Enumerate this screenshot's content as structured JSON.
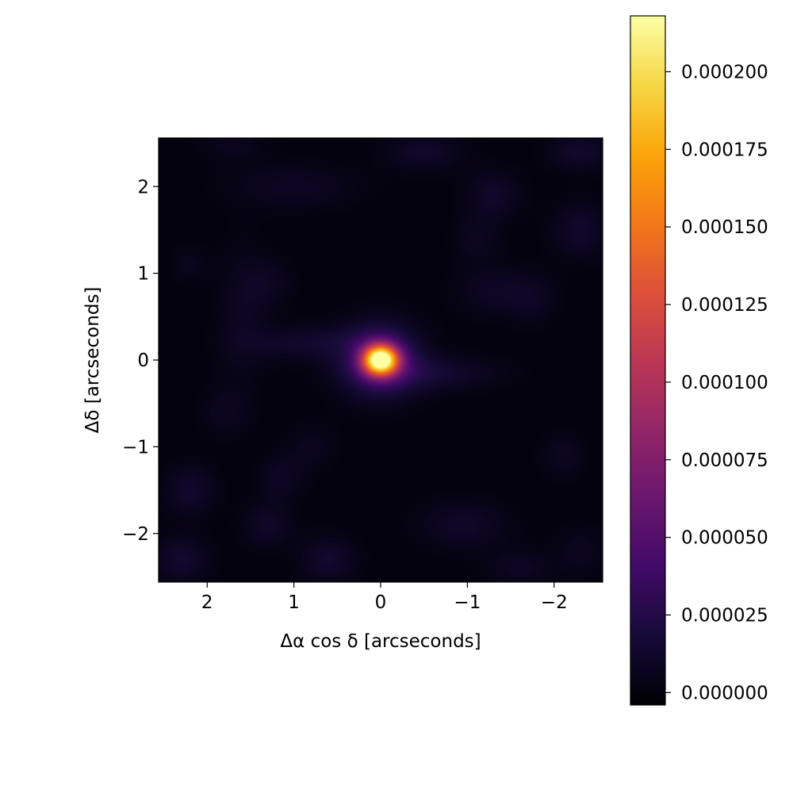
{
  "chart_data": {
    "type": "heatmap",
    "title": "",
    "xlabel": "Δα cos δ [arcseconds]",
    "ylabel": "Δδ [arcseconds]",
    "xlim": [
      2.56,
      -2.56
    ],
    "ylim": [
      -2.56,
      2.56
    ],
    "x_ticks": [
      2,
      1,
      0,
      -1,
      -2
    ],
    "x_tick_labels": [
      "2",
      "1",
      "0",
      "−1",
      "−2"
    ],
    "y_ticks": [
      2,
      1,
      0,
      -1,
      -2
    ],
    "y_tick_labels": [
      "2",
      "1",
      "0",
      "−1",
      "−2"
    ],
    "colormap": "inferno",
    "colorbar": {
      "range": [
        -4e-06,
        0.000218
      ],
      "ticks": [
        0,
        2.5e-05,
        5e-05,
        7.5e-05,
        0.0001,
        0.000125,
        0.00015,
        0.000175,
        0.0002
      ],
      "tick_labels": [
        "0.000000",
        "0.000025",
        "0.000050",
        "0.000075",
        "0.000100",
        "0.000125",
        "0.000150",
        "0.000175",
        "0.000200"
      ]
    },
    "components": [
      {
        "x": 0.0,
        "y": 0.0,
        "peak": 0.000218,
        "sigma_x": 0.14,
        "sigma_y": 0.12
      },
      {
        "x": 0.0,
        "y": 0.0,
        "peak": 4.5e-05,
        "sigma_x": 0.3,
        "sigma_y": 0.28
      },
      {
        "x": -0.5,
        "y": -0.15,
        "peak": 1.5e-05,
        "sigma_x": 0.55,
        "sigma_y": 0.14
      },
      {
        "x": 0.8,
        "y": 0.2,
        "peak": 1.3e-05,
        "sigma_x": 0.5,
        "sigma_y": 0.14
      },
      {
        "x": 2.2,
        "y": -1.5,
        "peak": 1.3e-05,
        "sigma_x": 0.2,
        "sigma_y": 0.2
      },
      {
        "x": 2.3,
        "y": -2.3,
        "peak": 1.4e-05,
        "sigma_x": 0.22,
        "sigma_y": 0.18
      },
      {
        "x": 0.6,
        "y": -2.3,
        "peak": 1.4e-05,
        "sigma_x": 0.22,
        "sigma_y": 0.18
      },
      {
        "x": 1.3,
        "y": -1.9,
        "peak": 1.1e-05,
        "sigma_x": 0.2,
        "sigma_y": 0.18
      },
      {
        "x": 1.15,
        "y": -1.35,
        "peak": 9e-06,
        "sigma_x": 0.18,
        "sigma_y": 0.18
      },
      {
        "x": -0.95,
        "y": -1.9,
        "peak": 1.1e-05,
        "sigma_x": 0.35,
        "sigma_y": 0.2
      },
      {
        "x": -1.6,
        "y": -2.4,
        "peak": 9e-06,
        "sigma_x": 0.25,
        "sigma_y": 0.15
      },
      {
        "x": -2.3,
        "y": -2.2,
        "peak": 7e-06,
        "sigma_x": 0.2,
        "sigma_y": 0.2
      },
      {
        "x": -2.1,
        "y": -1.1,
        "peak": 8e-06,
        "sigma_x": 0.18,
        "sigma_y": 0.18
      },
      {
        "x": -1.3,
        "y": 0.8,
        "peak": 9e-06,
        "sigma_x": 0.3,
        "sigma_y": 0.2
      },
      {
        "x": -1.75,
        "y": 0.7,
        "peak": 8e-06,
        "sigma_x": 0.2,
        "sigma_y": 0.2
      },
      {
        "x": -2.3,
        "y": 1.5,
        "peak": 1.3e-05,
        "sigma_x": 0.22,
        "sigma_y": 0.22
      },
      {
        "x": -2.3,
        "y": 2.4,
        "peak": 1.3e-05,
        "sigma_x": 0.25,
        "sigma_y": 0.15
      },
      {
        "x": -1.3,
        "y": 1.9,
        "peak": 1.2e-05,
        "sigma_x": 0.22,
        "sigma_y": 0.2
      },
      {
        "x": -1.1,
        "y": 1.4,
        "peak": 8e-06,
        "sigma_x": 0.18,
        "sigma_y": 0.18
      },
      {
        "x": -0.5,
        "y": 2.4,
        "peak": 1.2e-05,
        "sigma_x": 0.3,
        "sigma_y": 0.15
      },
      {
        "x": 1.0,
        "y": 2.0,
        "peak": 9e-06,
        "sigma_x": 0.5,
        "sigma_y": 0.18
      },
      {
        "x": 1.6,
        "y": 0.5,
        "peak": 8e-06,
        "sigma_x": 0.2,
        "sigma_y": 0.55
      },
      {
        "x": 1.3,
        "y": 0.9,
        "peak": 8e-06,
        "sigma_x": 0.2,
        "sigma_y": 0.2
      },
      {
        "x": 2.2,
        "y": 1.1,
        "peak": 6e-06,
        "sigma_x": 0.15,
        "sigma_y": 0.15
      },
      {
        "x": 1.8,
        "y": -0.6,
        "peak": 7e-06,
        "sigma_x": 0.2,
        "sigma_y": 0.2
      },
      {
        "x": 1.7,
        "y": 2.5,
        "peak": 7e-06,
        "sigma_x": 0.25,
        "sigma_y": 0.15
      },
      {
        "x": 0.8,
        "y": -1.0,
        "peak": 6e-06,
        "sigma_x": 0.2,
        "sigma_y": 0.2
      }
    ]
  }
}
